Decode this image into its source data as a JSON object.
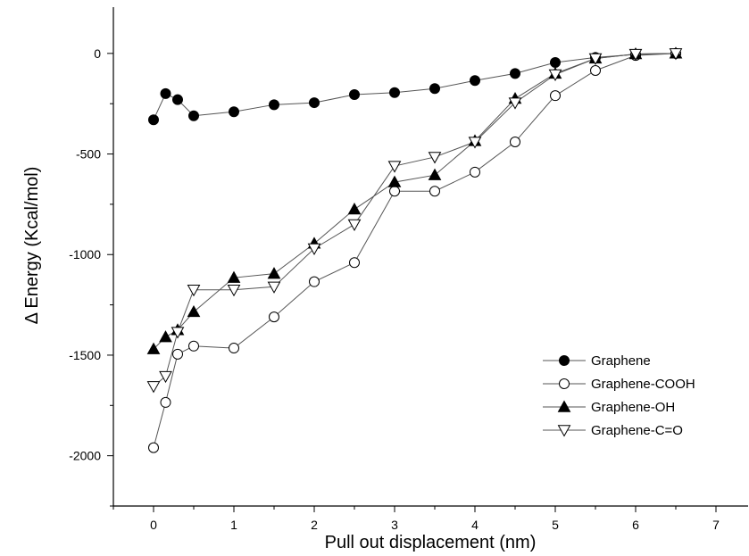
{
  "chart_data": {
    "type": "line",
    "title": "",
    "xlabel": "Pull out displacement (nm)",
    "ylabel": "Δ Energy (Kcal/mol)",
    "xlim": [
      -0.5,
      7.4
    ],
    "ylim": [
      -2250,
      230
    ],
    "xticks": [
      0,
      1,
      2,
      3,
      4,
      5,
      6,
      7
    ],
    "yticks": [
      0,
      -500,
      -1000,
      -1500,
      -2000
    ],
    "grid": false,
    "legend_position": "bottom-right",
    "series": [
      {
        "name": "Graphene",
        "marker": "circle-filled",
        "x": [
          0,
          0.15,
          0.3,
          0.5,
          1,
          1.5,
          2,
          2.5,
          3,
          3.5,
          4,
          4.5,
          5,
          5.5,
          6,
          6.5
        ],
        "y": [
          -330,
          -200,
          -230,
          -310,
          -290,
          -255,
          -245,
          -205,
          -195,
          -175,
          -135,
          -100,
          -45,
          -20,
          -5,
          0
        ]
      },
      {
        "name": "Graphene-COOH",
        "marker": "circle-open",
        "x": [
          0,
          0.15,
          0.3,
          0.5,
          1,
          1.5,
          2,
          2.5,
          3,
          3.5,
          4,
          4.5,
          5,
          5.5,
          6,
          6.5
        ],
        "y": [
          -1960,
          -1735,
          -1495,
          -1455,
          -1465,
          -1310,
          -1135,
          -1040,
          -685,
          -685,
          -590,
          -440,
          -210,
          -85,
          -10,
          0
        ]
      },
      {
        "name": "Graphene-OH",
        "marker": "triangle-up-filled",
        "x": [
          0,
          0.15,
          0.3,
          0.5,
          1,
          1.5,
          2,
          2.5,
          3,
          3.5,
          4,
          4.5,
          5,
          5.5,
          6,
          6.5
        ],
        "y": [
          -1470,
          -1410,
          -1375,
          -1285,
          -1115,
          -1095,
          -945,
          -775,
          -640,
          -605,
          -435,
          -225,
          -100,
          -25,
          -3,
          0
        ]
      },
      {
        "name": "Graphene-C=O",
        "marker": "triangle-down-open",
        "x": [
          0,
          0.15,
          0.3,
          0.5,
          1,
          1.5,
          2,
          2.5,
          3,
          3.5,
          4,
          4.5,
          5,
          5.5,
          6,
          6.5
        ],
        "y": [
          -1655,
          -1605,
          -1385,
          -1175,
          -1175,
          -1160,
          -970,
          -850,
          -560,
          -515,
          -440,
          -245,
          -105,
          -25,
          -3,
          0
        ]
      }
    ]
  }
}
